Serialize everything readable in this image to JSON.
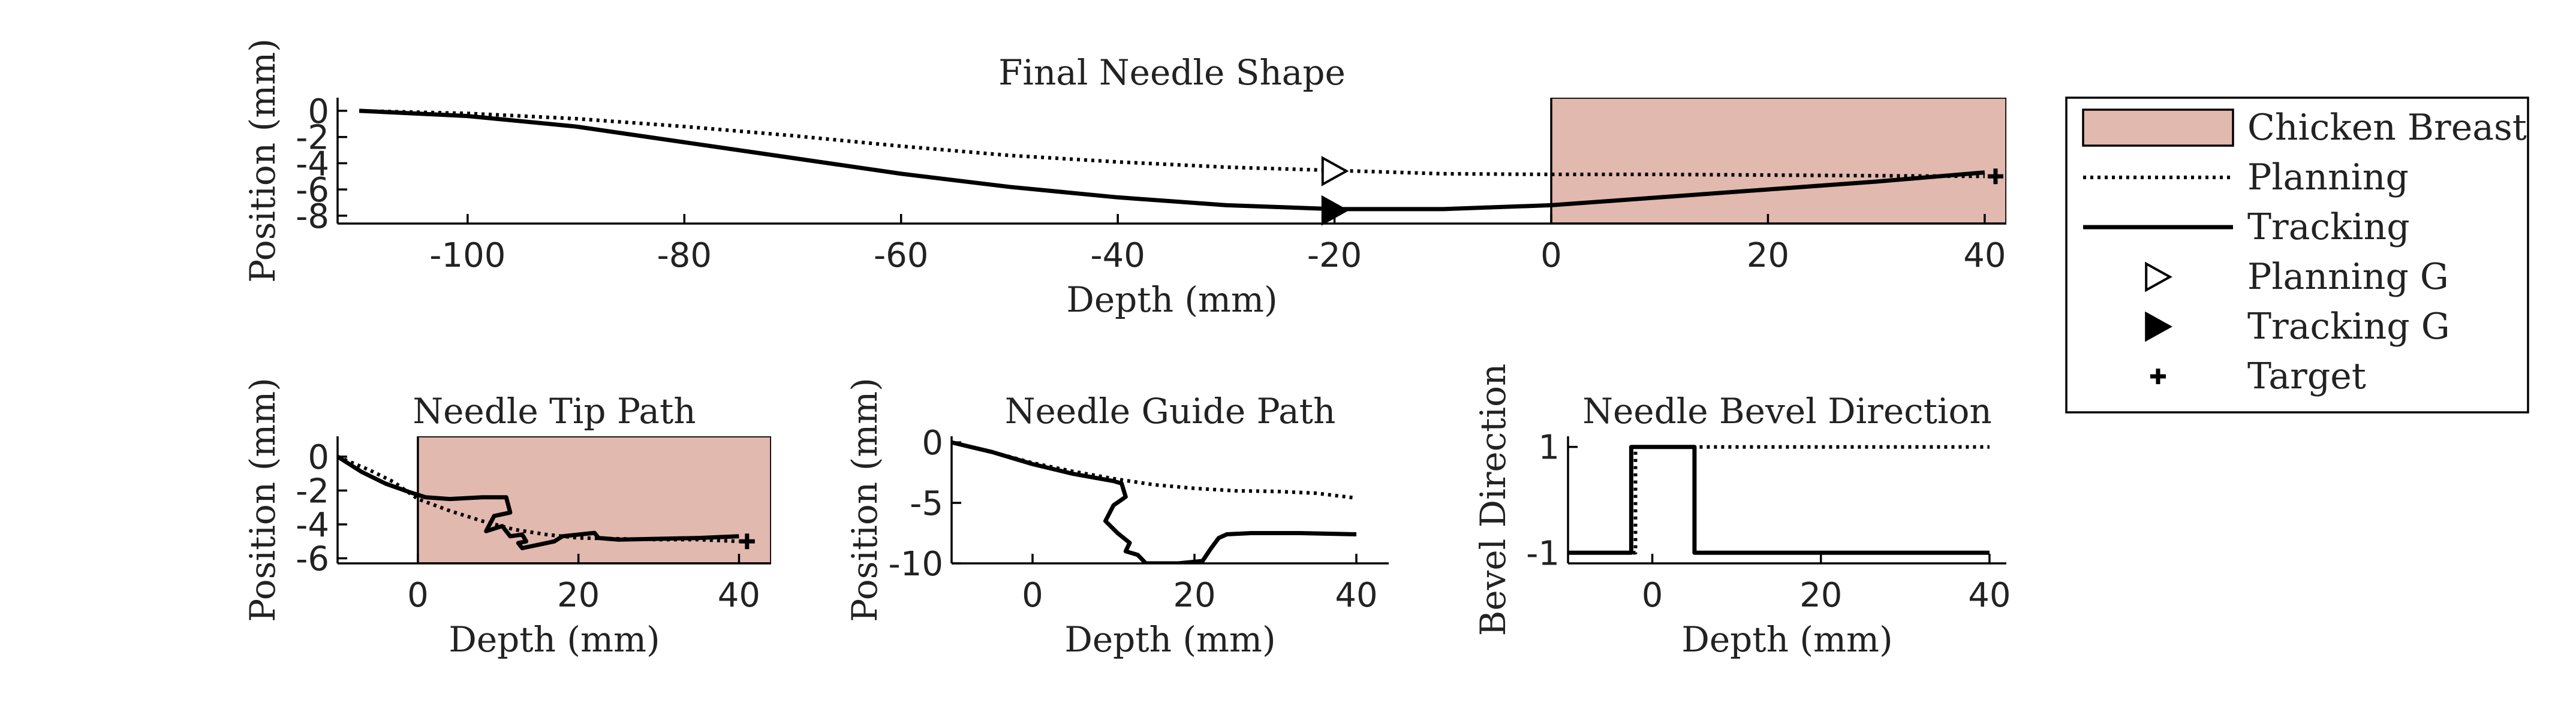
{
  "chart_data": [
    {
      "id": "shape",
      "type": "line",
      "title": "Final Needle Shape",
      "xlabel": "Depth (mm)",
      "ylabel": "Position (mm)",
      "xlim": [
        -112,
        42
      ],
      "ylim": [
        -8.6,
        1
      ],
      "xticks": [
        -100,
        -80,
        -60,
        -40,
        -20,
        0,
        20,
        40
      ],
      "yticks": [
        0,
        -2,
        -4,
        -6,
        -8
      ],
      "tissue_region": {
        "x": [
          0,
          42
        ],
        "y": [
          -8.6,
          1
        ]
      },
      "series": [
        {
          "name": "Planning",
          "style": "dotted",
          "x": [
            -110,
            -100,
            -90,
            -80,
            -70,
            -60,
            -50,
            -40,
            -30,
            -20,
            -10,
            0,
            10,
            20,
            30,
            40
          ],
          "y": [
            0,
            -0.2,
            -0.6,
            -1.2,
            -1.9,
            -2.7,
            -3.4,
            -3.9,
            -4.3,
            -4.55,
            -4.8,
            -4.85,
            -4.85,
            -4.9,
            -4.95,
            -5.0
          ]
        },
        {
          "name": "Tracking",
          "style": "solid",
          "x": [
            -110,
            -100,
            -90,
            -80,
            -70,
            -60,
            -50,
            -40,
            -30,
            -20,
            -10,
            0,
            10,
            20,
            30,
            40
          ],
          "y": [
            0,
            -0.4,
            -1.2,
            -2.4,
            -3.6,
            -4.8,
            -5.8,
            -6.6,
            -7.2,
            -7.5,
            -7.5,
            -7.2,
            -6.6,
            -6.0,
            -5.4,
            -4.7
          ]
        }
      ],
      "markers": [
        {
          "name": "Planning G",
          "symbol": "triangle-open",
          "x": -20,
          "y": -4.6
        },
        {
          "name": "Tracking G",
          "symbol": "triangle-filled",
          "x": -20,
          "y": -7.6
        },
        {
          "name": "Target",
          "symbol": "plus",
          "x": 41,
          "y": -5.0
        }
      ]
    },
    {
      "id": "tip",
      "type": "line",
      "title": "Needle Tip Path",
      "xlabel": "Depth (mm)",
      "ylabel": "Position (mm)",
      "xlim": [
        -10,
        44
      ],
      "ylim": [
        -6.3,
        1.2
      ],
      "xticks": [
        0,
        20,
        40
      ],
      "yticks": [
        0,
        -2,
        -4,
        -6
      ],
      "tissue_region": {
        "x": [
          0,
          44
        ],
        "y": [
          -6.3,
          1.2
        ]
      },
      "series": [
        {
          "name": "Planning",
          "style": "dotted",
          "x": [
            -10,
            -6,
            -3,
            0,
            4,
            8,
            12,
            16,
            20,
            25,
            30,
            35,
            40
          ],
          "y": [
            0,
            -0.8,
            -1.5,
            -2.5,
            -3.2,
            -3.8,
            -4.3,
            -4.6,
            -4.8,
            -4.85,
            -4.9,
            -4.9,
            -5.0
          ]
        },
        {
          "name": "Tracking",
          "style": "solid",
          "x": [
            -10,
            -7,
            -4,
            -1,
            1,
            4,
            8,
            11,
            11.5,
            9.5,
            8.5,
            10.5,
            11.5,
            13,
            13.5,
            12.5,
            13,
            17,
            18,
            22,
            22.5,
            25,
            30,
            35,
            40
          ],
          "y": [
            0,
            -0.9,
            -1.6,
            -2.1,
            -2.4,
            -2.5,
            -2.4,
            -2.4,
            -3.3,
            -3.5,
            -4.4,
            -4.1,
            -4.7,
            -4.6,
            -5.0,
            -5.1,
            -5.4,
            -5.0,
            -4.7,
            -4.5,
            -4.8,
            -4.9,
            -4.85,
            -4.8,
            -4.7
          ]
        }
      ],
      "markers": [
        {
          "name": "Target",
          "symbol": "plus",
          "x": 41,
          "y": -5.0
        }
      ]
    },
    {
      "id": "guide",
      "type": "line",
      "title": "Needle Guide Path",
      "xlabel": "Depth (mm)",
      "ylabel": "Position (mm)",
      "xlim": [
        -10,
        44
      ],
      "ylim": [
        -10,
        0.5
      ],
      "xticks": [
        0,
        20,
        40
      ],
      "yticks": [
        0,
        -5,
        -10
      ],
      "series": [
        {
          "name": "Planning",
          "style": "dotted",
          "x": [
            -10,
            -5,
            0,
            5,
            10,
            15,
            20,
            25,
            30,
            35,
            40
          ],
          "y": [
            0,
            -0.8,
            -1.7,
            -2.4,
            -3.0,
            -3.5,
            -3.8,
            -4.0,
            -4.05,
            -4.2,
            -4.6
          ]
        },
        {
          "name": "Tracking",
          "style": "solid",
          "x": [
            -10,
            -5,
            0,
            5,
            10,
            11,
            11.5,
            10,
            9,
            10.5,
            12,
            11.5,
            13,
            14,
            18,
            21,
            22,
            23,
            24,
            27,
            33,
            40
          ],
          "y": [
            0,
            -0.8,
            -1.8,
            -2.6,
            -3.2,
            -3.4,
            -4.5,
            -5.2,
            -6.5,
            -7.5,
            -8.3,
            -9.0,
            -9.3,
            -10.0,
            -10.0,
            -9.8,
            -8.8,
            -7.9,
            -7.6,
            -7.5,
            -7.5,
            -7.6
          ]
        }
      ]
    },
    {
      "id": "bevel",
      "type": "line",
      "title": "Needle Bevel Direction",
      "xlabel": "Depth (mm)",
      "ylabel": "Bevel Direction",
      "xlim": [
        -10,
        42
      ],
      "ylim": [
        -1.2,
        1.2
      ],
      "xticks": [
        0,
        20,
        40
      ],
      "yticks": [
        1,
        -1
      ],
      "series": [
        {
          "name": "Planning",
          "style": "dotted",
          "x": [
            -10,
            -2,
            -2,
            40
          ],
          "y": [
            -1,
            -1,
            1,
            1
          ]
        },
        {
          "name": "Tracking",
          "style": "solid",
          "x": [
            -10,
            -2.5,
            -2.5,
            5,
            5,
            40
          ],
          "y": [
            -1,
            -1,
            1,
            1,
            -1,
            -1
          ]
        }
      ]
    }
  ],
  "legend": {
    "placement": "right",
    "entries": [
      {
        "label": "Chicken Breast",
        "kind": "patch",
        "color": "#e2b9ae"
      },
      {
        "label": "Planning",
        "kind": "dotted"
      },
      {
        "label": "Tracking",
        "kind": "solid"
      },
      {
        "label": "Planning G",
        "kind": "triangle-open"
      },
      {
        "label": "Tracking G",
        "kind": "triangle-filled"
      },
      {
        "label": "Target",
        "kind": "plus"
      }
    ]
  },
  "colors": {
    "tissue": "#e2b9ae",
    "line": "#000000"
  }
}
